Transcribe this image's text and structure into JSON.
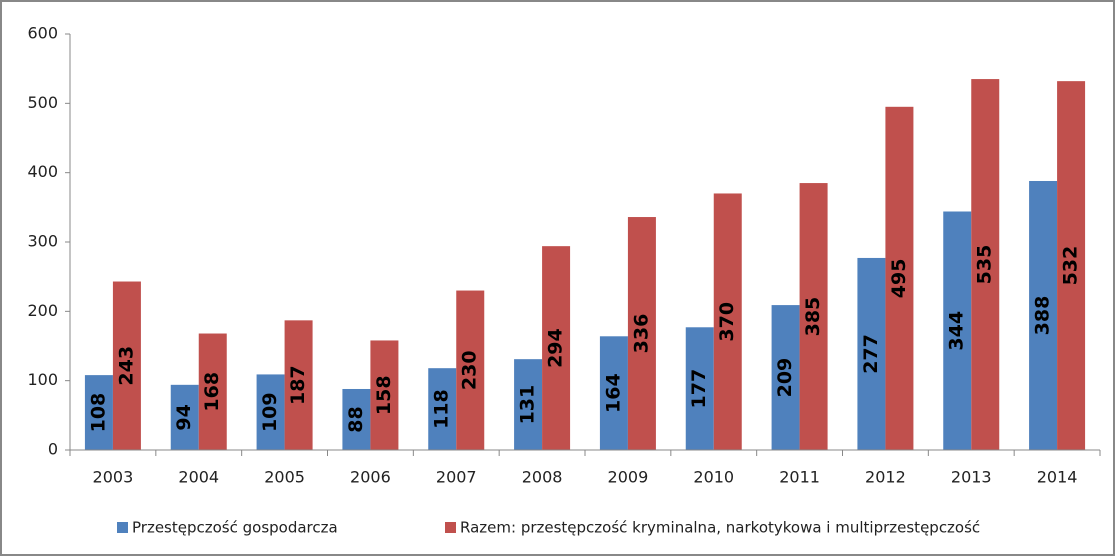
{
  "chart_data": {
    "type": "bar",
    "categories": [
      "2003",
      "2004",
      "2005",
      "2006",
      "2007",
      "2008",
      "2009",
      "2010",
      "2011",
      "2012",
      "2013",
      "2014"
    ],
    "series": [
      {
        "name": "Przestępczość gospodarcza",
        "color": "#4f81bd",
        "values": [
          108,
          94,
          109,
          88,
          118,
          131,
          164,
          177,
          209,
          277,
          344,
          388
        ]
      },
      {
        "name": "Razem: przestępczość kryminalna, narkotykowa i multiprzestępczość",
        "color": "#c0504d",
        "values": [
          243,
          168,
          187,
          158,
          230,
          294,
          336,
          370,
          385,
          495,
          535,
          532
        ]
      }
    ],
    "ylim": [
      0,
      600
    ],
    "yticks": [
      0,
      100,
      200,
      300,
      400,
      500,
      600
    ],
    "grid": false,
    "legend": "bottom",
    "data_labels": true
  }
}
